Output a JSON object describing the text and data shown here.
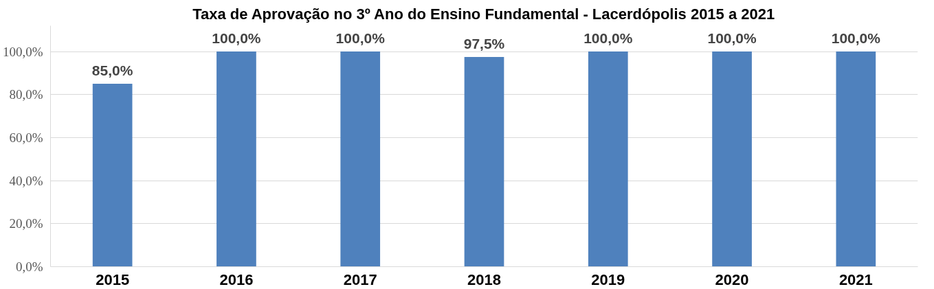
{
  "chart_data": {
    "type": "bar",
    "title": "Taxa de Aprovação no 3º Ano do Ensino Fundamental - Lacerdópolis 2015 a 2021",
    "categories": [
      "2015",
      "2016",
      "2017",
      "2018",
      "2019",
      "2020",
      "2021"
    ],
    "values": [
      85,
      100,
      100,
      97.5,
      100,
      100,
      100
    ],
    "value_labels": [
      "85,0%",
      "100,0%",
      "100,0%",
      "97,5%",
      "100,0%",
      "100,0%",
      "100,0%"
    ],
    "color": "#4f81bd",
    "ylim": [
      0,
      112
    ],
    "yticks": [
      {
        "value": 0,
        "label": "0,0%"
      },
      {
        "value": 20,
        "label": "20,0%"
      },
      {
        "value": 40,
        "label": "40,0%"
      },
      {
        "value": 60,
        "label": "60,0%"
      },
      {
        "value": 80,
        "label": "80,0%"
      },
      {
        "value": 100,
        "label": "100,0%"
      }
    ],
    "grid": "y"
  }
}
